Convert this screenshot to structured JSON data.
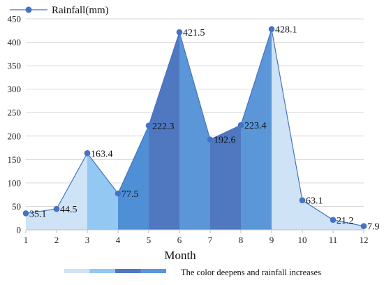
{
  "chart_data": {
    "type": "area",
    "x": [
      1,
      2,
      3,
      4,
      5,
      6,
      7,
      8,
      9,
      10,
      11,
      12
    ],
    "series": [
      {
        "name": "Rainfall(mm)",
        "values": [
          35.1,
          44.5,
          163.4,
          77.5,
          222.3,
          421.5,
          192.6,
          223.4,
          428.1,
          63.1,
          21.2,
          7.9
        ]
      }
    ],
    "xlabel": "Month",
    "ylabel": "",
    "xlim": [
      1,
      12
    ],
    "ylim": [
      0,
      450
    ],
    "yticks": [
      0,
      50,
      100,
      150,
      200,
      250,
      300,
      350,
      400,
      450
    ],
    "grid": "horizontal",
    "legend": "top-left",
    "segment_colors": [
      "#cfe3f6",
      "#cfe3f6",
      "#93c8f2",
      "#4f8fd6",
      "#4f78c0",
      "#5a96d8",
      "#4f78c0",
      "#5a96d8",
      "#cfe3f6",
      "#cfe3f6",
      "#cfe3f6"
    ],
    "line_color": "#4472c4",
    "marker_color": "#4472c4",
    "color_note": {
      "text": "The color deepens and rainfall increases",
      "swatches": [
        "#cfe3f6",
        "#93c8f2",
        "#4f78c0",
        "#5a96d8"
      ]
    }
  }
}
